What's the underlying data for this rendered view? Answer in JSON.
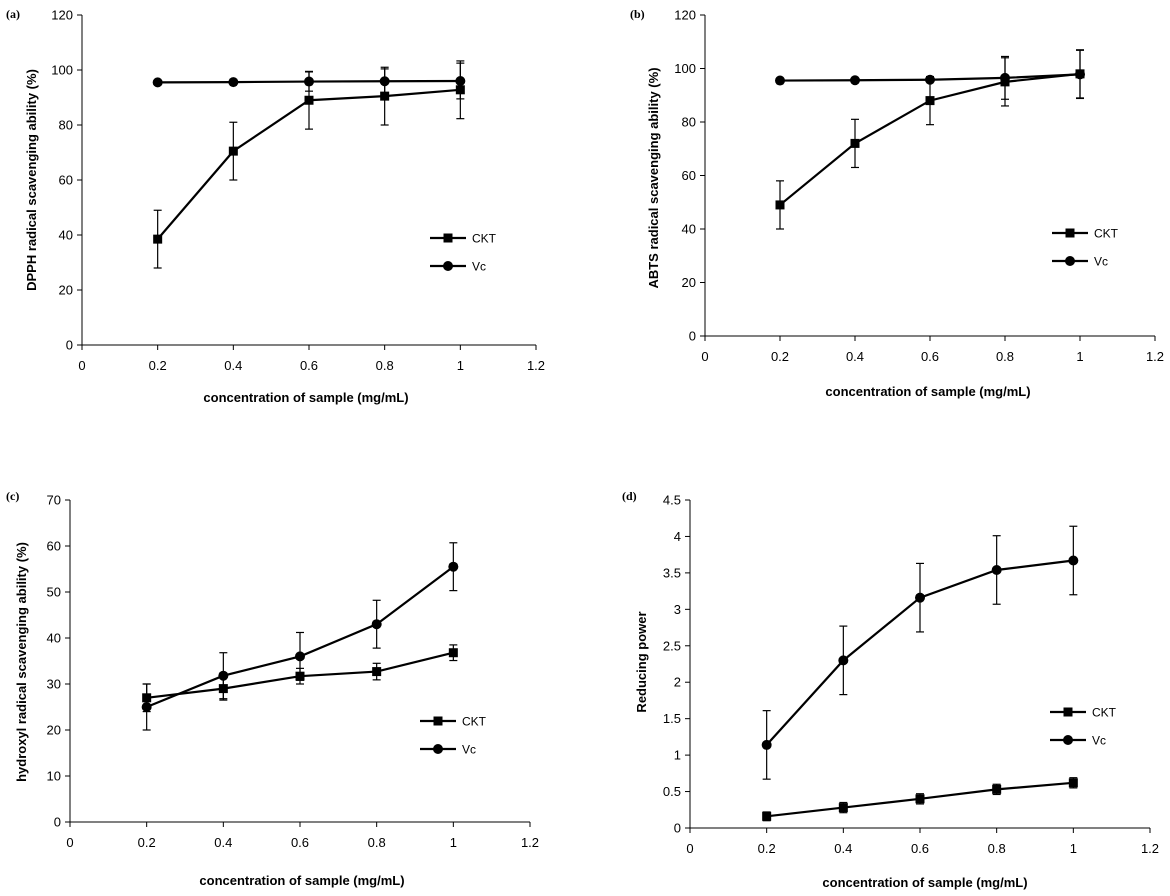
{
  "chart_data": [
    {
      "panel": "(a)",
      "type": "line",
      "xlabel": "concentration of sample (mg/mL)",
      "ylabel": "DPPH radical scavenging ability (%)",
      "xlim": [
        0,
        1.2
      ],
      "ylim": [
        0,
        120
      ],
      "xticks": [
        0,
        0.2,
        0.4,
        0.6,
        0.8,
        1,
        1.2
      ],
      "xtick_labels": [
        "0",
        "0.2",
        "0.4",
        "0.6",
        "0.8",
        "1",
        "1.2"
      ],
      "yticks": [
        0,
        20,
        40,
        60,
        80,
        100,
        120
      ],
      "ytick_labels": [
        "0",
        "20",
        "40",
        "60",
        "80",
        "100",
        "120"
      ],
      "x": [
        0.2,
        0.4,
        0.6,
        0.8,
        1.0
      ],
      "series": [
        {
          "name": "CKT",
          "marker": "square",
          "values": [
            38.5,
            70.5,
            89,
            90.5,
            92.8
          ],
          "errors": [
            10.5,
            10.5,
            10.5,
            10.5,
            10.5
          ]
        },
        {
          "name": "Vc",
          "marker": "circle",
          "values": [
            95.5,
            95.6,
            95.8,
            95.9,
            96
          ],
          "errors": [
            0,
            0,
            3.5,
            4.5,
            6.5
          ]
        }
      ]
    },
    {
      "panel": "(b)",
      "type": "line",
      "xlabel": "concentration of sample (mg/mL)",
      "ylabel": "ABTS radical scavenging ability (%)",
      "xlim": [
        0,
        1.2
      ],
      "ylim": [
        0,
        120
      ],
      "xticks": [
        0,
        0.2,
        0.4,
        0.6,
        0.8,
        1,
        1.2
      ],
      "xtick_labels": [
        "0",
        "0.2",
        "0.4",
        "0.6",
        "0.8",
        "1",
        "1.2"
      ],
      "yticks": [
        0,
        20,
        40,
        60,
        80,
        100,
        120
      ],
      "ytick_labels": [
        "0",
        "20",
        "40",
        "60",
        "80",
        "100",
        "120"
      ],
      "x": [
        0.2,
        0.4,
        0.6,
        0.8,
        1.0
      ],
      "series": [
        {
          "name": "CKT",
          "marker": "square",
          "values": [
            49,
            72,
            88,
            95,
            98
          ],
          "errors": [
            9,
            9,
            9,
            9,
            9
          ]
        },
        {
          "name": "Vc",
          "marker": "circle",
          "values": [
            95.5,
            95.6,
            95.8,
            96.5,
            97.8
          ],
          "errors": [
            0,
            0,
            0,
            8,
            9
          ]
        }
      ]
    },
    {
      "panel": "(c)",
      "type": "line",
      "xlabel": "concentration of sample (mg/mL)",
      "ylabel": "hydroxyl radical scavenging ability (%)",
      "xlim": [
        0,
        1.2
      ],
      "ylim": [
        0,
        70
      ],
      "xticks": [
        0,
        0.2,
        0.4,
        0.6,
        0.8,
        1,
        1.2
      ],
      "xtick_labels": [
        "0",
        "0.2",
        "0.4",
        "0.6",
        "0.8",
        "1",
        "1.2"
      ],
      "yticks": [
        0,
        10,
        20,
        30,
        40,
        50,
        60,
        70
      ],
      "ytick_labels": [
        "0",
        "10",
        "20",
        "30",
        "40",
        "50",
        "60",
        "70"
      ],
      "x": [
        0.2,
        0.4,
        0.6,
        0.8,
        1.0
      ],
      "series": [
        {
          "name": "CKT",
          "marker": "square",
          "values": [
            27,
            29,
            31.7,
            32.7,
            36.8
          ],
          "errors": [
            3,
            2.5,
            1.7,
            1.8,
            1.7
          ]
        },
        {
          "name": "Vc",
          "marker": "circle",
          "values": [
            25,
            31.8,
            36,
            43,
            55.5
          ],
          "errors": [
            5,
            5,
            5.2,
            5.2,
            5.2
          ]
        }
      ]
    },
    {
      "panel": "(d)",
      "type": "line",
      "xlabel": "concentration of sample (mg/mL)",
      "ylabel": "Reducing power",
      "xlim": [
        0,
        1.2
      ],
      "ylim": [
        0,
        4.5
      ],
      "xticks": [
        0,
        0.2,
        0.4,
        0.6,
        0.8,
        1,
        1.2
      ],
      "xtick_labels": [
        "0",
        "0.2",
        "0.4",
        "0.6",
        "0.8",
        "1",
        "1.2"
      ],
      "yticks": [
        0,
        0.5,
        1,
        1.5,
        2,
        2.5,
        3,
        3.5,
        4,
        4.5
      ],
      "ytick_labels": [
        "0",
        "0.5",
        "1",
        "1.5",
        "2",
        "2.5",
        "3",
        "3.5",
        "4",
        "4.5"
      ],
      "x": [
        0.2,
        0.4,
        0.6,
        0.8,
        1.0
      ],
      "series": [
        {
          "name": "CKT",
          "marker": "square",
          "values": [
            0.16,
            0.28,
            0.4,
            0.53,
            0.62
          ],
          "errors": [
            0.06,
            0.07,
            0.07,
            0.07,
            0.07
          ]
        },
        {
          "name": "Vc",
          "marker": "circle",
          "values": [
            1.14,
            2.3,
            3.16,
            3.54,
            3.67
          ],
          "errors": [
            0.47,
            0.47,
            0.47,
            0.47,
            0.47
          ]
        }
      ]
    }
  ]
}
